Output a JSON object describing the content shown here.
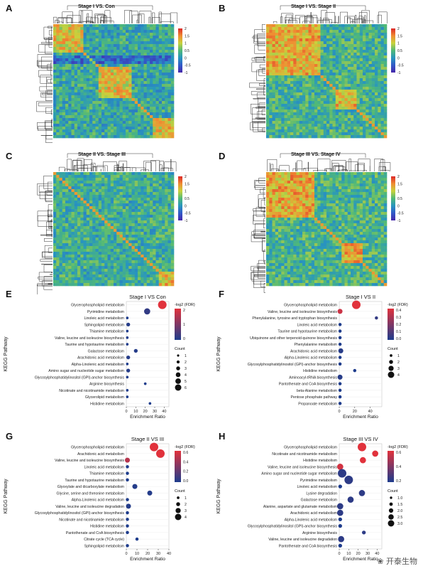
{
  "panels_top": [
    {
      "letter": "A",
      "title": "Stage I VS. Con",
      "scale": [
        "2",
        "1.5",
        "1",
        "0.5",
        "0",
        "-0.5",
        "-1"
      ]
    },
    {
      "letter": "B",
      "title": "Stage I VS. Stage II",
      "scale": [
        "2",
        "1.5",
        "1",
        "0.5",
        "0",
        "-0.5",
        "-1"
      ]
    },
    {
      "letter": "C",
      "title": "Stage II VS. Stage III",
      "scale": [
        "2",
        "1.5",
        "1",
        "0.5",
        "0",
        "-0.5",
        "-1"
      ]
    },
    {
      "letter": "D",
      "title": "Stage III VS. Stage IV",
      "scale": [
        "2",
        "1.5",
        "1",
        "0.5",
        "0",
        "-0.5",
        "-1"
      ]
    }
  ],
  "watermark": "开泰生物",
  "chart_data": [
    {
      "type": "scatter",
      "letter": "E",
      "title": "Stage I VS Con",
      "xlabel": "Enrichment Ratio",
      "ylabel": "KEGG Pathway",
      "xticks": [
        "0",
        "10",
        "20",
        "30",
        "40"
      ],
      "xlim": [
        0,
        45
      ],
      "legend_color_title": "-log2 (FDR)",
      "color_ticks": [
        "2",
        "1",
        "0"
      ],
      "color_range": [
        0,
        3
      ],
      "legend_size_title": "Count",
      "size_ticks": [
        "1",
        "2",
        "3",
        "4",
        "5",
        "6"
      ],
      "pathways": [
        "Glycerophospholipid metabolism",
        "Pyrimidine metabolism",
        "Linoleic acid metabolism",
        "Sphingolipid metabolism",
        "Thiamine metabolism",
        "Valine, leucine and isoleucine biosynthesis",
        "Taurine and hypotaurine metabolism",
        "Galactose metabolism",
        "Arachidonic acid metabolism",
        "Alpha-Linolenic acid metabolism",
        "Amino sugar and nucleotide sugar metabolism",
        "Glycosylphosphatidylinositol (GPI)-anchor biosynthesis",
        "Arginine biosynthesis",
        "Nicotinate and nicotinamide metabolism",
        "Glycerolipid metabolism",
        "Histidine metabolism"
      ],
      "ratio": [
        38,
        22,
        1,
        2,
        1,
        1,
        1,
        10,
        2,
        1,
        2,
        1,
        20,
        1,
        1,
        25
      ],
      "count": [
        6,
        4,
        1,
        2,
        1,
        1,
        1,
        2,
        2,
        1,
        2,
        1,
        1,
        1,
        1,
        1
      ],
      "fdr": [
        3,
        0.3,
        0,
        0.1,
        0,
        0,
        0,
        0.1,
        0.1,
        0,
        0.1,
        0,
        0,
        0,
        0,
        0
      ]
    },
    {
      "type": "scatter",
      "letter": "F",
      "title": "Stage I VS II",
      "xlabel": "Enrichment Ratio",
      "ylabel": "KEGG Pathway",
      "xticks": [
        "0",
        "20",
        "40"
      ],
      "xlim": [
        0,
        55
      ],
      "legend_color_title": "-log2 (FDR)",
      "color_ticks": [
        "0.4",
        "0.3",
        "0.2",
        "0.1",
        "0.0"
      ],
      "color_range": [
        0,
        0.45
      ],
      "legend_size_title": "Count",
      "size_ticks": [
        "1",
        "2",
        "3",
        "4"
      ],
      "pathways": [
        "Glycerophospholipid metabolism",
        "Valine, leucine and isoleucine biosynthesis",
        "Phenylalanine, tyrosine and tryptophan biosynthesis",
        "Linoleic acid metabolism",
        "Taurine and hypotaurine metabolism",
        "Ubiquinone and other terpenoid-quinone biosynthesis",
        "Phenylalanine metabolism",
        "Arachidonic acid metabolism",
        "Alpha-Linolenic acid metabolism",
        "Glycosylphosphatidylinositol (GPI)-anchor biosynthesis",
        "Histidine metabolism",
        "Aminoacyl-tRNA biosynthesis",
        "Pantothenate and CoA biosynthesis",
        "beta-Alanine metabolism",
        "Pentose phosphate pathway",
        "Propanoate metabolism"
      ],
      "ratio": [
        22,
        1,
        48,
        1,
        1,
        1,
        1,
        2,
        1,
        1,
        20,
        1,
        1,
        1,
        1,
        1
      ],
      "count": [
        4,
        2,
        1,
        1,
        1,
        1,
        1,
        2,
        1,
        1,
        1,
        2,
        1,
        1,
        1,
        1
      ],
      "fdr": [
        0.45,
        0.4,
        0.05,
        0,
        0,
        0,
        0,
        0.02,
        0,
        0,
        0,
        0.02,
        0,
        0,
        0,
        0
      ]
    },
    {
      "type": "scatter",
      "letter": "G",
      "title": "Stage II VS III",
      "xlabel": "Enrichment Ratio",
      "ylabel": "KEGG Pathway",
      "xticks": [
        "0",
        "10",
        "20",
        "30",
        "40"
      ],
      "xlim": [
        0,
        40
      ],
      "legend_color_title": "-log2 (FDR)",
      "color_ticks": [
        "0.6",
        "0.4",
        "0.2",
        "0.0"
      ],
      "color_range": [
        0,
        0.7
      ],
      "legend_size_title": "Count",
      "size_ticks": [
        "1",
        "2",
        "3",
        "4"
      ],
      "pathways": [
        "Glycerophospholipid metabolism",
        "Arachidonic acid metabolism",
        "Valine, leucine and isoleucine biosynthesis",
        "Linoleic acid metabolism",
        "Thiamine metabolism",
        "Taurine and hypotaurine metabolism",
        "Glyoxylate and dicarboxylate metabolism",
        "Glycine, serine and threonine metabolism",
        "Alpha-Linolenic acid metabolism",
        "Valine, leucine and isoleucine degradation",
        "Glycosylphosphatidylinositol (GPI)-anchor biosynthesis",
        "Nicotinate and nicotinamide metabolism",
        "Histidine metabolism",
        "Pantothenate and CoA biosynthesis",
        "Citrate cycle (TCA cycle)",
        "Sphingolipid metabolism"
      ],
      "ratio": [
        26,
        32,
        1,
        1,
        1,
        1,
        8,
        22,
        1,
        2,
        1,
        1,
        1,
        1,
        10,
        1
      ],
      "count": [
        4,
        4,
        2,
        1,
        1,
        1,
        2,
        2,
        1,
        2,
        1,
        1,
        1,
        1,
        1,
        1
      ],
      "fdr": [
        0.7,
        0.7,
        0.55,
        0,
        0,
        0,
        0.02,
        0.02,
        0,
        0.02,
        0,
        0,
        0,
        0,
        0,
        0
      ]
    },
    {
      "type": "scatter",
      "letter": "H",
      "title": "Stage III VS IV",
      "xlabel": "Enrichment Ratio",
      "ylabel": "KEGG Pathway",
      "xticks": [
        "0",
        "10",
        "20",
        "30",
        "40"
      ],
      "xlim": [
        0,
        45
      ],
      "legend_color_title": "-log2 (FDR)",
      "color_ticks": [
        "0.6",
        "0.4",
        "0.2"
      ],
      "color_range": [
        0.05,
        0.7
      ],
      "legend_size_title": "Count",
      "size_ticks": [
        "1.0",
        "1.5",
        "2.0",
        "2.5",
        "3.0"
      ],
      "pathways": [
        "Glycerophospholipid metabolism",
        "Nicotinate and nicotinamide metabolism",
        "Histidine metabolism",
        "Valine, leucine and isoleucine biosynthesis",
        "Amino sugar and nucleotide sugar metabolism",
        "Pyrimidine metabolism",
        "Linoleic acid metabolism",
        "Lysine degradation",
        "Galactose metabolism",
        "Alanine, aspartate and glutamate metabolism",
        "Arachidonic acid metabolism",
        "Alpha-Linolenic acid metabolism",
        "Glycosylphosphatidylinositol (GPI)-anchor biosynthesis",
        "Arginine biosynthesis",
        "Valine, leucine and isoleucine degradation",
        "Pantothenate and CoA biosynthesis"
      ],
      "ratio": [
        24,
        38,
        25,
        1,
        3,
        10,
        1,
        24,
        12,
        1,
        1,
        1,
        1,
        26,
        2,
        1
      ],
      "count": [
        3,
        2,
        2,
        2,
        3,
        3,
        1,
        2,
        2,
        2,
        2,
        1,
        1,
        1,
        2,
        1
      ],
      "fdr": [
        0.7,
        0.7,
        0.7,
        0.65,
        0.1,
        0.1,
        0.05,
        0.1,
        0.1,
        0.1,
        0.1,
        0.05,
        0.05,
        0.1,
        0.1,
        0.05
      ]
    }
  ]
}
